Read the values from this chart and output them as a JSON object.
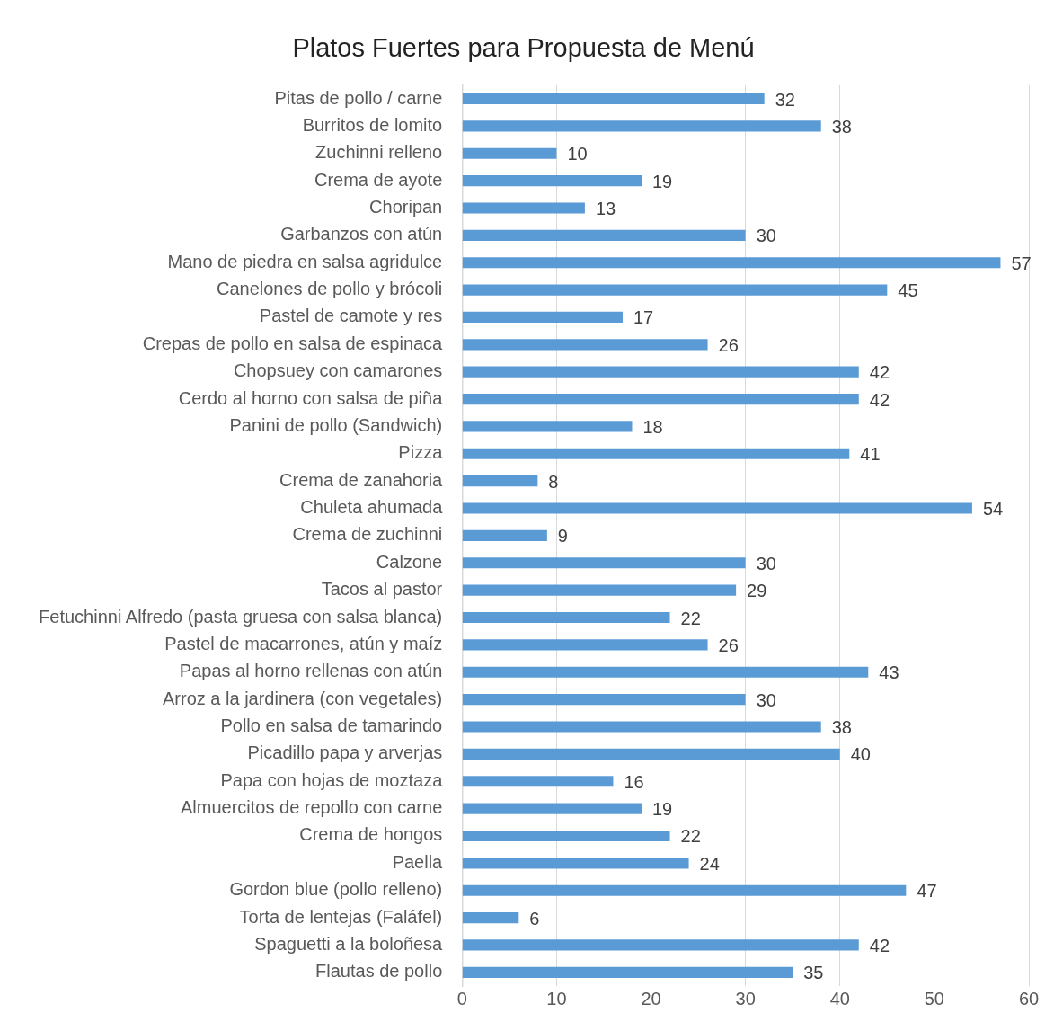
{
  "chart_data": {
    "type": "bar",
    "orientation": "horizontal",
    "title": "Platos Fuertes para Propuesta de Menú",
    "categories": [
      "Pitas de pollo / carne",
      "Burritos de lomito",
      "Zuchinni relleno",
      "Crema de ayote",
      "Choripan",
      "Garbanzos con atún",
      "Mano de piedra en salsa agridulce",
      "Canelones de pollo y brócoli",
      "Pastel de camote y res",
      "Crepas de pollo en salsa de espinaca",
      "Chopsuey con camarones",
      "Cerdo al horno con salsa de piña",
      "Panini de pollo (Sandwich)",
      "Pizza",
      "Crema de zanahoria",
      "Chuleta ahumada",
      "Crema de zuchinni",
      "Calzone",
      "Tacos al pastor",
      "Fetuchinni Alfredo (pasta gruesa con salsa blanca)",
      "Pastel de macarrones, atún y maíz",
      "Papas al horno rellenas con atún",
      "Arroz a la jardinera (con vegetales)",
      "Pollo en salsa de tamarindo",
      "Picadillo papa y arverjas",
      "Papa con hojas de moztaza",
      "Almuercitos de repollo con carne",
      "Crema de hongos",
      "Paella",
      "Gordon blue (pollo relleno)",
      "Torta de lentejas (Faláfel)",
      "Spaguetti a la boloñesa",
      "Flautas de pollo"
    ],
    "values": [
      32,
      38,
      10,
      19,
      13,
      30,
      57,
      45,
      17,
      26,
      42,
      42,
      18,
      41,
      8,
      54,
      9,
      30,
      29,
      22,
      26,
      43,
      30,
      38,
      40,
      16,
      19,
      22,
      24,
      47,
      6,
      42,
      35
    ],
    "color": "#5b9bd5",
    "xlim": [
      0,
      60
    ],
    "xticks": [
      0,
      10,
      20,
      30,
      40,
      50,
      60
    ],
    "grid": "x",
    "data_labels": true,
    "legend": false
  }
}
